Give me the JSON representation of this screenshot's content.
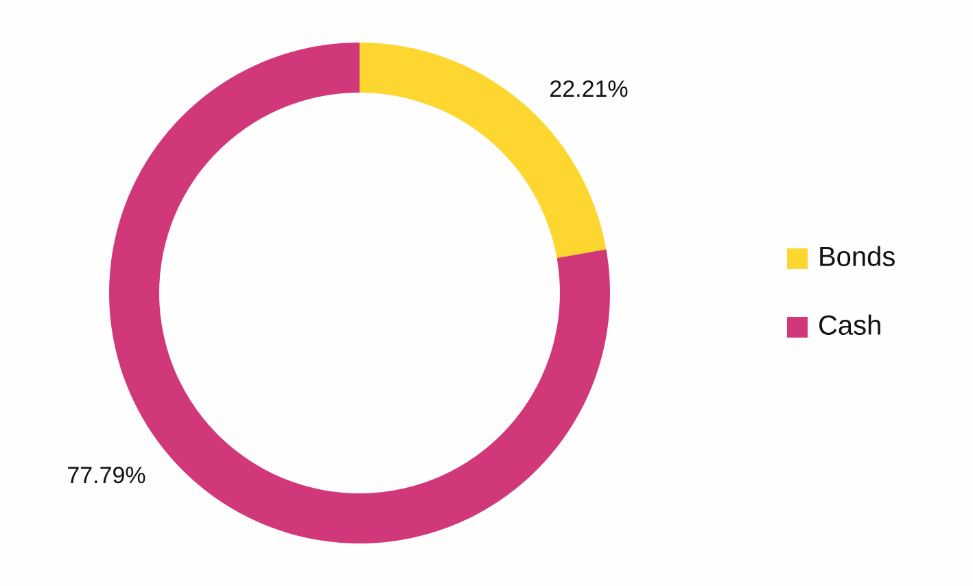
{
  "chart_data": {
    "type": "doughnut",
    "categories": [
      "Bonds",
      "Cash"
    ],
    "values": [
      22.21,
      77.79
    ],
    "value_labels": [
      "22.21%",
      "77.79%"
    ],
    "colors": [
      "#fed630",
      "#d0387a"
    ],
    "legend": "right"
  }
}
